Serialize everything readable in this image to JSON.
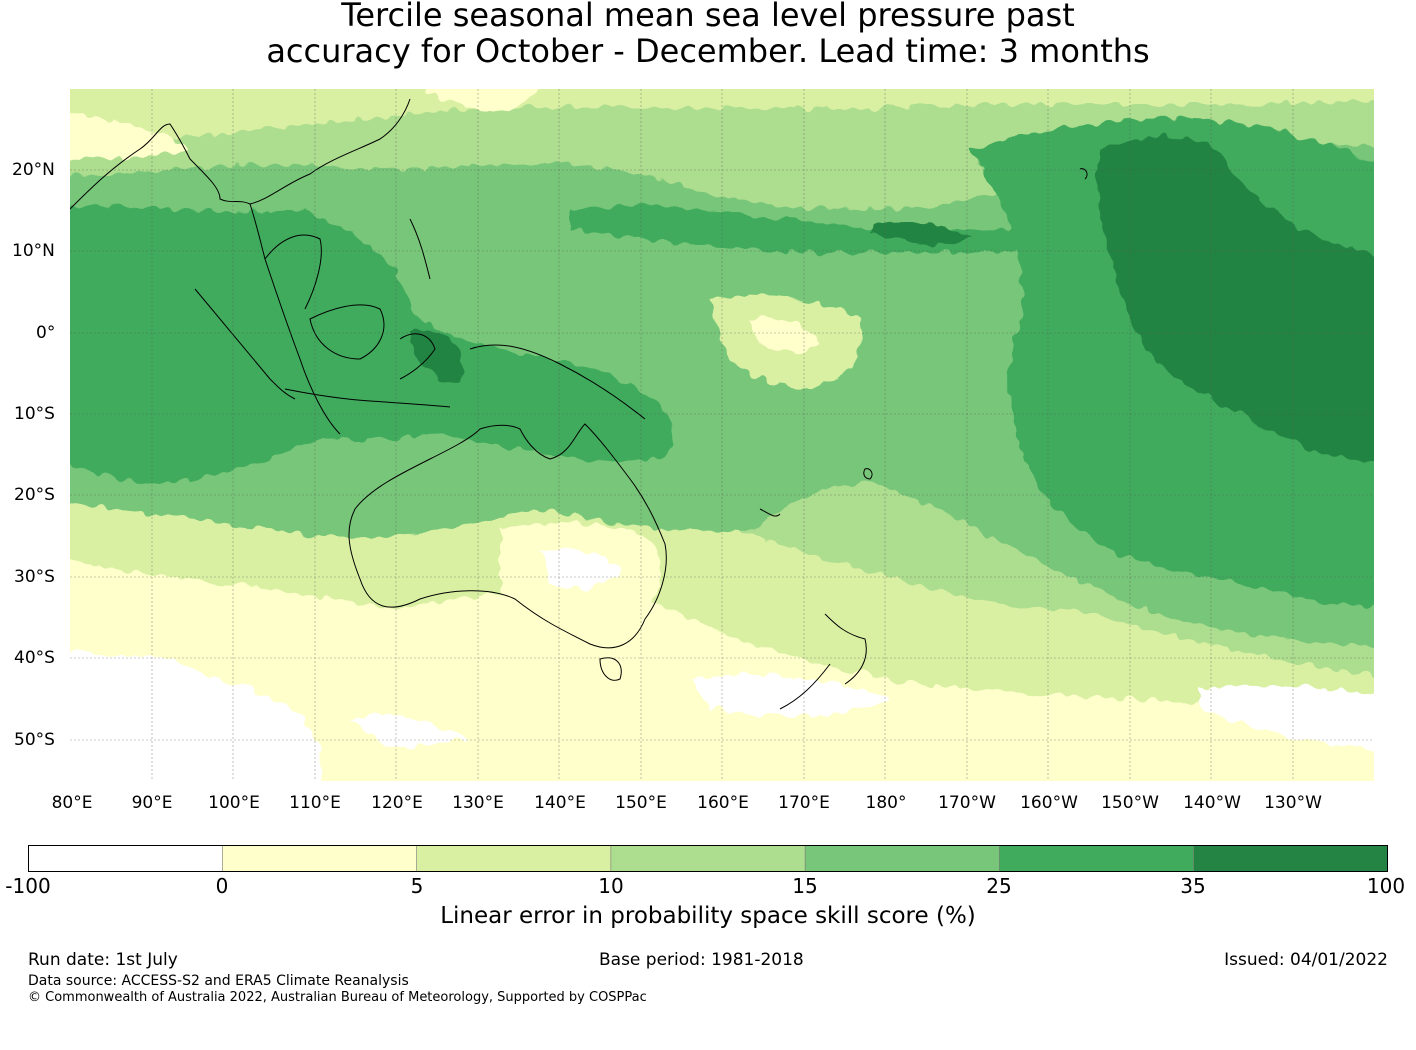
{
  "title": {
    "line1": "Tercile seasonal mean sea level pressure past",
    "line2": "accuracy for October - December. Lead time: 3 months"
  },
  "map": {
    "longitude_labels": [
      "80°E",
      "90°E",
      "100°E",
      "110°E",
      "120°E",
      "130°E",
      "140°E",
      "150°E",
      "160°E",
      "170°E",
      "180°",
      "170°W",
      "160°W",
      "150°W",
      "140°W",
      "130°W"
    ],
    "latitude_labels": [
      "20°N",
      "10°N",
      "0°",
      "10°S",
      "20°S",
      "30°S",
      "40°S",
      "50°S"
    ],
    "lon_range": [
      80,
      240
    ],
    "lat_range": [
      -55,
      30
    ],
    "gridlines": true
  },
  "colorbar": {
    "label": "Linear error in probability space skill score (%)",
    "ticks": [
      "-100",
      "0",
      "5",
      "10",
      "15",
      "25",
      "35",
      "100"
    ],
    "colors": [
      "#ffffff",
      "#ffffcc",
      "#d9f0a3",
      "#addd8e",
      "#78c679",
      "#41ab5d",
      "#238443"
    ]
  },
  "footer": {
    "run_date": "Run date: 1st July",
    "base_period": "Base period: 1981-2018",
    "issued": "Issued: 04/01/2022",
    "data_source": "Data source: ACCESS-S2 and ERA5 Climate Reanalysis",
    "copyright": "© Commonwealth of Australia 2022, Australian Bureau of Meteorology, Supported by COSPPac"
  }
}
